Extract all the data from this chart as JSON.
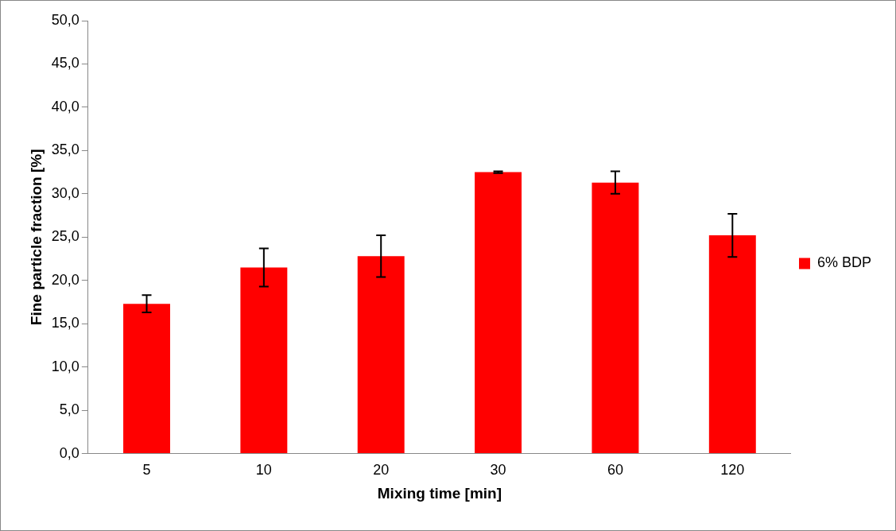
{
  "chart_data": {
    "type": "bar",
    "xlabel": "Mixing time [min]",
    "ylabel": "Fine particle fraction [%]",
    "categories": [
      "5",
      "10",
      "20",
      "30",
      "60",
      "120"
    ],
    "series": [
      {
        "name": "6% BDP",
        "color": "#ff0000",
        "values": [
          17.3,
          21.5,
          22.8,
          32.5,
          31.3,
          25.2
        ],
        "errors": [
          1.0,
          2.2,
          2.4,
          0.1,
          1.3,
          2.5
        ]
      }
    ],
    "ylim": [
      0,
      50
    ],
    "yticks": [
      {
        "value": 0,
        "label": "0,0"
      },
      {
        "value": 5,
        "label": "5,0"
      },
      {
        "value": 10,
        "label": "10,0"
      },
      {
        "value": 15,
        "label": "15,0"
      },
      {
        "value": 20,
        "label": "20,0"
      },
      {
        "value": 25,
        "label": "25,0"
      },
      {
        "value": 30,
        "label": "30,0"
      },
      {
        "value": 35,
        "label": "35,0"
      },
      {
        "value": 40,
        "label": "40,0"
      },
      {
        "value": 45,
        "label": "45,0"
      },
      {
        "value": 50,
        "label": "50,0"
      }
    ],
    "grid": false,
    "legend": "right"
  }
}
